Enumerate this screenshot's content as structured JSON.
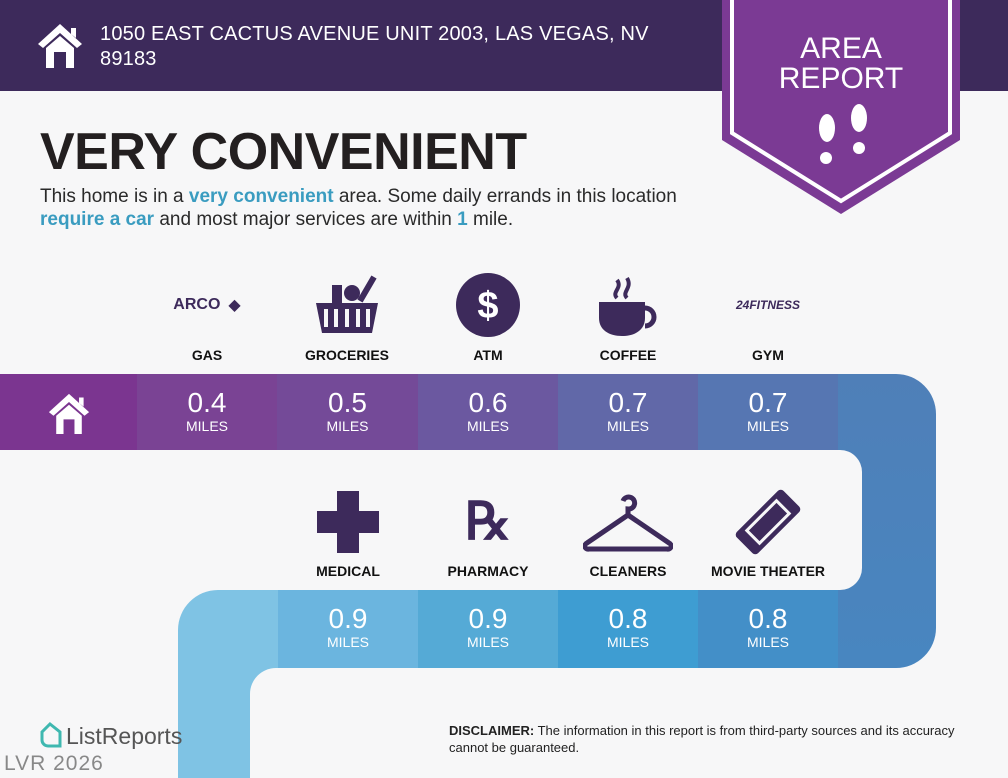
{
  "header": {
    "address": "1050 EAST CACTUS AVENUE UNIT 2003, LAS VEGAS, NV 89183",
    "icon": "house-icon"
  },
  "badge": {
    "line1": "AREA",
    "line2": "REPORT",
    "icon": "footprints-icon"
  },
  "title": "VERY CONVENIENT",
  "description": {
    "p1": "This home is in a ",
    "h1": "very convenient",
    "p2": " area. Some daily errands in this location ",
    "h2": "require a car",
    "p3": " and most major services are within ",
    "h3": "1",
    "p4": " mile."
  },
  "top_row": [
    {
      "label": "GAS",
      "logo": "ARCO",
      "distance": "0.4",
      "unit": "MILES"
    },
    {
      "label": "GROCERIES",
      "icon": "grocery-basket-icon",
      "distance": "0.5",
      "unit": "MILES"
    },
    {
      "label": "ATM",
      "icon": "dollar-icon",
      "distance": "0.6",
      "unit": "MILES"
    },
    {
      "label": "COFFEE",
      "icon": "coffee-cup-icon",
      "distance": "0.7",
      "unit": "MILES"
    },
    {
      "label": "GYM",
      "logo": "24FITNESS",
      "distance": "0.7",
      "unit": "MILES"
    }
  ],
  "bottom_row": [
    {
      "label": "MEDICAL",
      "icon": "medical-cross-icon",
      "distance": "0.9",
      "unit": "MILES"
    },
    {
      "label": "PHARMACY",
      "icon": "rx-icon",
      "distance": "0.9",
      "unit": "MILES"
    },
    {
      "label": "CLEANERS",
      "icon": "hanger-icon",
      "distance": "0.8",
      "unit": "MILES"
    },
    {
      "label": "MOVIE THEATER",
      "icon": "ticket-icon",
      "distance": "0.8",
      "unit": "MILES"
    }
  ],
  "colors": {
    "header": "#3d2a5b",
    "badge": "#7b3a94",
    "accent": "#3a9cc0",
    "icon": "#3d2a5b"
  },
  "footer": {
    "brand": "ListReports",
    "disclaimer_label": "DISCLAIMER:",
    "disclaimer": " The information in this report is from third-party sources and its accuracy cannot be guaranteed.",
    "watermark": "LVR 2026"
  }
}
